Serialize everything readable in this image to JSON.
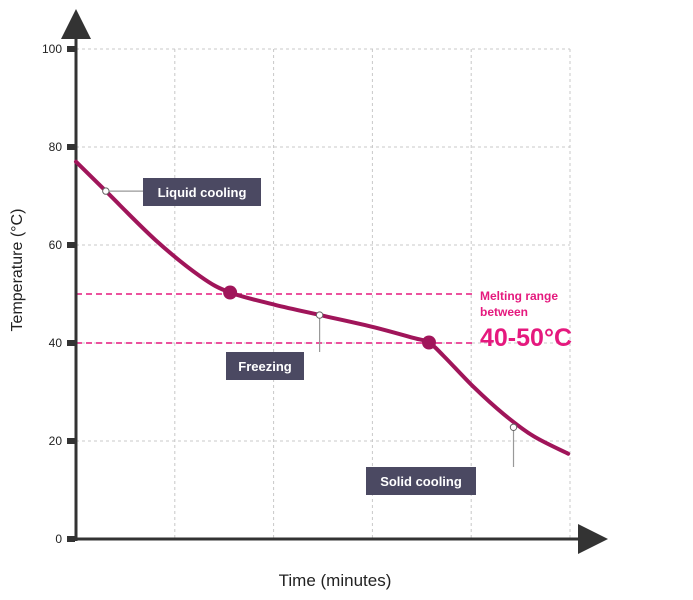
{
  "chart_data": {
    "type": "line",
    "title": "",
    "xlabel": "Time (minutes)",
    "ylabel": "Temperature (°C)",
    "ylim": [
      0,
      100
    ],
    "yticks": [
      0,
      20,
      40,
      60,
      80,
      100
    ],
    "ytick_labels": [
      "0",
      "20",
      "40",
      "60",
      "80",
      "100"
    ],
    "xlim": [
      0,
      5.3
    ],
    "grid": true,
    "series": [
      {
        "color": "#a0155a",
        "points": [
          [
            0,
            77
          ],
          [
            0.3,
            71
          ],
          [
            0.8,
            61
          ],
          [
            1.25,
            53.6
          ],
          [
            1.55,
            50.3
          ],
          [
            2.0,
            47.8
          ],
          [
            2.5,
            45.5
          ],
          [
            3.0,
            43.2
          ],
          [
            3.4,
            41.0
          ],
          [
            3.55,
            40.1
          ],
          [
            3.7,
            37.3
          ],
          [
            4.0,
            31.0
          ],
          [
            4.3,
            25.5
          ],
          [
            4.6,
            21.0
          ],
          [
            4.95,
            17.4
          ]
        ]
      }
    ],
    "markers": [
      {
        "x": 1.55,
        "y": 50.3
      },
      {
        "x": 3.55,
        "y": 40.1
      }
    ],
    "reference_lines": [
      {
        "y": 50,
        "color": "#e5197e",
        "style": "dashed"
      },
      {
        "y": 40,
        "color": "#e5197e",
        "style": "dashed"
      }
    ],
    "annotations": [
      {
        "name": "liquid-cooling",
        "text": "Liquid cooling",
        "point": [
          0.3,
          71
        ]
      },
      {
        "name": "freezing",
        "text": "Freezing",
        "point": [
          2.45,
          45.7
        ]
      },
      {
        "name": "solid-cooling",
        "text": "Solid cooling",
        "point": [
          4.4,
          22.8
        ]
      }
    ],
    "side_note": {
      "line1": "Melting range",
      "line2": "between",
      "big": "40-50°C",
      "color": "#e5197e"
    }
  },
  "colors": {
    "curve": "#a0155a",
    "reference": "#e5197e",
    "label_box": "#4b4962",
    "axis": "#333333",
    "grid": "#c8c8c8"
  }
}
